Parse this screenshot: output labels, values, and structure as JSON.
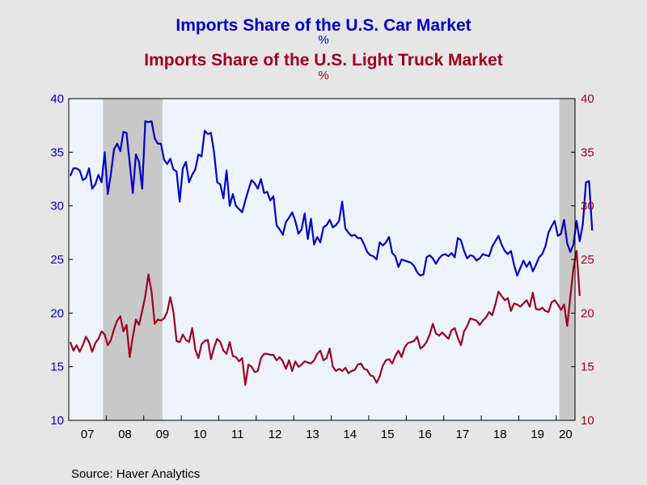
{
  "titles": {
    "car_title": "Imports Share of the U.S. Car Market",
    "car_unit": "%",
    "truck_title": "Imports Share of the U.S. Light Truck Market",
    "truck_unit": "%"
  },
  "source": "Source:  Haver Analytics",
  "colors": {
    "car": "#0000c8",
    "truck": "#a0001e",
    "plot_bg": "#eef4fd",
    "recession": "#c8c8c8",
    "page_bg": "#e6e6e6"
  },
  "chart_data": {
    "type": "line",
    "frequency": "monthly",
    "x_start": "2007-01",
    "x_end": "2020-06",
    "ylim_left": [
      10,
      40
    ],
    "ylim_right": [
      10,
      40
    ],
    "y_ticks_left": [
      "10",
      "15",
      "20",
      "25",
      "30",
      "35",
      "40"
    ],
    "y_ticks_right": [
      "10",
      "15",
      "20",
      "25",
      "30",
      "35",
      "40"
    ],
    "x_tick_labels": [
      "07",
      "08",
      "09",
      "10",
      "11",
      "12",
      "13",
      "14",
      "15",
      "16",
      "17",
      "18",
      "19",
      "20"
    ],
    "grid": false,
    "recessions": [
      {
        "start": "2007-12",
        "end": "2009-06"
      },
      {
        "start": "2020-02",
        "end": "2020-06"
      }
    ],
    "series": [
      {
        "name": "Imports Share of the U.S. Car Market",
        "axis": "left",
        "values": [
          32.8,
          33.5,
          33.5,
          33.3,
          32.4,
          32.6,
          33.5,
          31.6,
          32.0,
          32.9,
          32.2,
          35.0,
          31.1,
          33.0,
          35.3,
          35.8,
          35.1,
          36.9,
          36.8,
          34.0,
          31.2,
          34.8,
          34.1,
          31.6,
          37.9,
          37.8,
          37.9,
          36.3,
          35.8,
          35.8,
          34.3,
          33.9,
          34.4,
          33.4,
          33.2,
          30.4,
          33.5,
          34.1,
          32.2,
          32.9,
          33.4,
          34.8,
          34.6,
          37.0,
          36.7,
          36.8,
          35.0,
          32.2,
          32.0,
          30.7,
          33.3,
          30.0,
          31.1,
          30.0,
          29.7,
          29.4,
          30.5,
          31.5,
          32.4,
          32.1,
          31.6,
          32.5,
          31.2,
          31.3,
          30.5,
          30.9,
          28.2,
          27.8,
          27.3,
          28.5,
          28.9,
          29.4,
          28.6,
          27.4,
          27.8,
          29.3,
          26.9,
          28.8,
          26.4,
          27.1,
          26.6,
          28.0,
          28.2,
          28.7,
          28.0,
          28.2,
          28.6,
          30.4,
          27.9,
          27.5,
          27.2,
          27.3,
          27.0,
          27.0,
          26.4,
          25.7,
          25.4,
          25.3,
          25.0,
          26.6,
          26.3,
          26.6,
          27.1,
          25.6,
          25.3,
          24.3,
          25.0,
          24.9,
          24.8,
          24.7,
          24.4,
          23.8,
          23.5,
          23.6,
          25.2,
          25.4,
          25.1,
          24.6,
          25.1,
          25.4,
          25.5,
          25.3,
          25.6,
          25.2,
          27.0,
          26.8,
          25.8,
          25.1,
          25.4,
          25.3,
          24.9,
          25.1,
          25.5,
          25.4,
          25.3,
          26.2,
          26.7,
          27.2,
          26.4,
          25.8,
          25.5,
          25.8,
          24.5,
          23.5,
          24.2,
          24.9,
          24.3,
          24.8,
          23.9,
          24.5,
          25.2,
          25.5,
          26.2,
          27.5,
          28.1,
          28.6,
          27.2,
          27.4,
          28.7,
          26.5,
          25.7,
          26.4,
          28.6,
          26.7,
          28.3,
          32.2,
          32.3,
          27.7
        ]
      },
      {
        "name": "Imports Share of the U.S. Light Truck Market",
        "axis": "right",
        "values": [
          17.3,
          16.5,
          17.0,
          16.4,
          17.0,
          17.8,
          17.3,
          16.4,
          17.2,
          17.6,
          18.3,
          18.0,
          17.0,
          17.5,
          18.5,
          19.3,
          19.7,
          18.3,
          18.9,
          15.9,
          17.8,
          19.4,
          18.9,
          20.2,
          21.6,
          23.6,
          22.0,
          19.0,
          19.4,
          19.3,
          19.5,
          20.1,
          21.5,
          20.1,
          17.4,
          17.3,
          18.0,
          17.5,
          17.3,
          18.6,
          16.6,
          15.8,
          17.1,
          17.4,
          17.5,
          15.7,
          16.8,
          17.6,
          17.3,
          16.5,
          16.2,
          17.3,
          16.0,
          15.9,
          15.5,
          15.8,
          13.3,
          15.2,
          15.0,
          14.5,
          14.6,
          15.8,
          16.2,
          16.2,
          16.1,
          16.1,
          15.6,
          15.9,
          15.5,
          14.8,
          15.6,
          14.6,
          15.5,
          15.0,
          15.2,
          15.5,
          15.4,
          15.3,
          15.6,
          16.2,
          16.5,
          15.6,
          15.8,
          16.7,
          15.0,
          14.6,
          14.8,
          14.6,
          14.9,
          14.4,
          14.6,
          14.7,
          15.2,
          15.3,
          14.8,
          14.7,
          14.2,
          14.1,
          13.5,
          14.1,
          15.1,
          15.6,
          15.7,
          15.3,
          16.0,
          16.5,
          15.9,
          16.8,
          17.2,
          17.3,
          17.4,
          17.8,
          16.7,
          16.9,
          17.3,
          18.0,
          19.0,
          18.1,
          17.9,
          18.2,
          17.9,
          17.6,
          18.4,
          18.6,
          17.7,
          17.0,
          18.3,
          18.8,
          19.5,
          19.4,
          19.3,
          18.9,
          19.3,
          19.6,
          20.1,
          19.8,
          20.8,
          22.0,
          21.6,
          21.2,
          21.4,
          20.2,
          20.9,
          20.8,
          20.6,
          20.9,
          21.2,
          20.6,
          21.9,
          20.4,
          20.3,
          20.5,
          20.2,
          20.1,
          21.0,
          21.2,
          20.8,
          20.3,
          20.8,
          18.8,
          21.5,
          24.2,
          25.8,
          21.6
        ]
      }
    ]
  }
}
